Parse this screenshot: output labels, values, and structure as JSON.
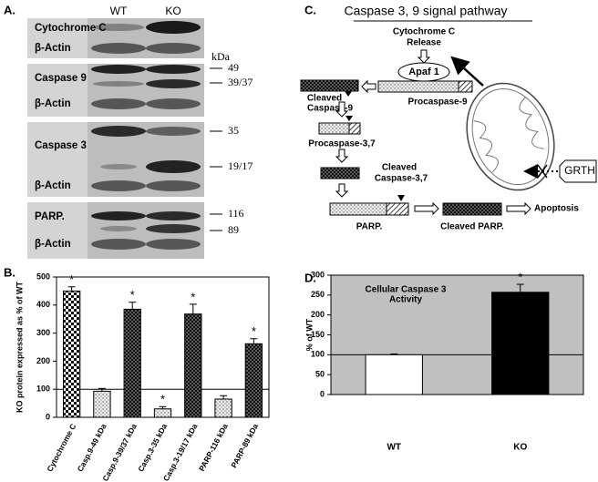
{
  "panel_labels": [
    "A.",
    "B.",
    "C.",
    "D."
  ],
  "blot": {
    "lanes": [
      "WT",
      "KO"
    ],
    "rows": [
      "Cytochrome C",
      "β-Actin",
      "Caspase 9",
      "β-Actin",
      "Caspase 3",
      "β-Actin",
      "PARP.",
      "β-Actin"
    ],
    "kda": [
      "kDa",
      "49",
      "39/37",
      "35",
      "19/17",
      "116",
      "89"
    ]
  },
  "pathway": {
    "title": "Caspase 3, 9 signal pathway",
    "cyt_release": [
      "Cytochrome C",
      "Release"
    ],
    "apaf": "Apaf 1",
    "procasp9": "Procaspase-9",
    "cleaved_casp9": [
      "Cleaved",
      "Caspase-9"
    ],
    "procasp37": "Procaspase-3,7",
    "cleaved_casp37": [
      "Cleaved",
      "Caspase-3,7"
    ],
    "parp": "PARP.",
    "cleaved_parp": "Cleaved PARP.",
    "apoptosis": "Apoptosis",
    "grth": "GRTH"
  },
  "chart_data": [
    {
      "type": "bar",
      "ylabel": "KO protein expressed as % of WT",
      "categories": [
        "Cytochrome C",
        "Casp.9-49 kDa",
        "Casp.9-39/37 kDa",
        "Casp.3-35 kDa",
        "Casp.3-19/17 kDa",
        "PARP-116 kDa",
        "PARP-89 kDa"
      ],
      "values": [
        450,
        93,
        385,
        30,
        368,
        65,
        262
      ],
      "errors": [
        15,
        10,
        25,
        8,
        35,
        12,
        18
      ],
      "significance": [
        "*",
        null,
        "*",
        "*",
        "*",
        null,
        "*"
      ],
      "colors": [
        "#e0e0e0",
        "#d8d8d8",
        "#1a1a1a",
        "#d8d8d8",
        "#1a1a1a",
        "#d8d8d8",
        "#1a1a1a"
      ],
      "ylim": [
        0,
        500
      ],
      "yticks": [
        0,
        100,
        200,
        300,
        400,
        500
      ],
      "reference_line": 100,
      "background": "#ffffff"
    },
    {
      "type": "bar",
      "ylabel": "% of WT",
      "annotation": [
        "Cellular Caspase 3",
        "Activity"
      ],
      "categories": [
        "WT",
        "KO"
      ],
      "values": [
        100,
        257
      ],
      "errors": [
        2,
        20
      ],
      "significance": [
        null,
        "*"
      ],
      "colors": [
        "#ffffff",
        "#000000"
      ],
      "ylim": [
        0,
        300
      ],
      "yticks": [
        0,
        50,
        100,
        150,
        200,
        250,
        300
      ],
      "reference_line": 100,
      "background": "#c0c0c0"
    }
  ]
}
